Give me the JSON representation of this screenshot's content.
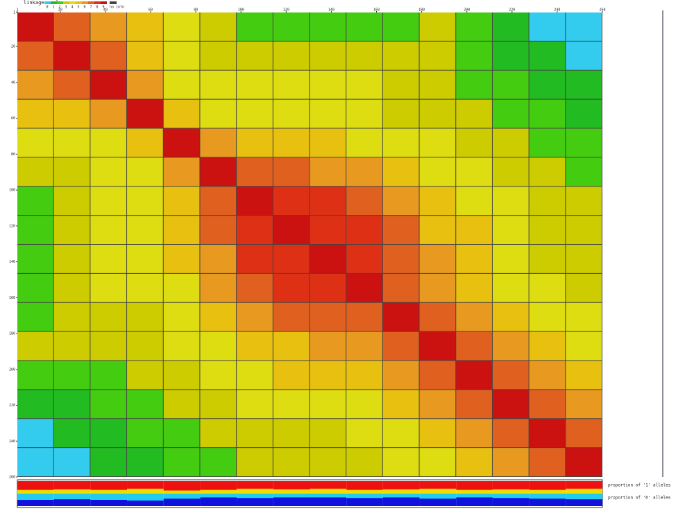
{
  "chart_data": {
    "type": "heatmap",
    "legend_title": "linkage scale",
    "no_info_label": "no info",
    "no_info_color": "#444444",
    "scale_labels": [
      0,
      1,
      2,
      3,
      4,
      5,
      6,
      7,
      8,
      9
    ],
    "colors": [
      "#33ccee",
      "#22bb22",
      "#44cc11",
      "#cccc00",
      "#dddd11",
      "#e8c010",
      "#e89a20",
      "#e06020",
      "#dd3015",
      "#cc1111"
    ],
    "xlim": [
      1,
      260
    ],
    "xticks": [
      1,
      20,
      40,
      60,
      80,
      100,
      120,
      140,
      160,
      180,
      200,
      220,
      240,
      260
    ],
    "yticks": [
      1,
      20,
      40,
      60,
      80,
      100,
      120,
      140,
      160,
      180,
      200,
      220,
      240,
      260
    ],
    "matrix": [
      [
        9,
        7,
        6,
        5,
        4,
        3,
        2,
        2,
        2,
        2,
        2,
        3,
        2,
        1,
        0,
        0
      ],
      [
        7,
        9,
        7,
        5,
        4,
        3,
        3,
        3,
        3,
        3,
        3,
        3,
        2,
        1,
        1,
        0
      ],
      [
        6,
        7,
        9,
        6,
        4,
        4,
        4,
        4,
        4,
        4,
        3,
        3,
        2,
        2,
        1,
        1
      ],
      [
        5,
        5,
        6,
        9,
        5,
        4,
        4,
        4,
        4,
        4,
        3,
        3,
        3,
        2,
        2,
        1
      ],
      [
        4,
        4,
        4,
        5,
        9,
        6,
        5,
        5,
        5,
        4,
        4,
        4,
        3,
        3,
        2,
        2
      ],
      [
        3,
        3,
        4,
        4,
        6,
        9,
        7,
        7,
        6,
        6,
        5,
        4,
        4,
        3,
        3,
        2
      ],
      [
        2,
        3,
        4,
        4,
        5,
        7,
        9,
        8,
        8,
        7,
        6,
        5,
        4,
        4,
        3,
        3
      ],
      [
        2,
        3,
        4,
        4,
        5,
        7,
        8,
        9,
        8,
        8,
        7,
        5,
        5,
        4,
        3,
        3
      ],
      [
        2,
        3,
        4,
        4,
        5,
        6,
        8,
        8,
        9,
        8,
        7,
        6,
        5,
        4,
        3,
        3
      ],
      [
        2,
        3,
        4,
        4,
        4,
        6,
        7,
        8,
        8,
        9,
        7,
        6,
        5,
        4,
        4,
        3
      ],
      [
        2,
        3,
        3,
        3,
        4,
        5,
        6,
        7,
        7,
        7,
        9,
        7,
        6,
        5,
        4,
        4
      ],
      [
        3,
        3,
        3,
        3,
        4,
        4,
        5,
        5,
        6,
        6,
        7,
        9,
        7,
        6,
        5,
        4
      ],
      [
        2,
        2,
        2,
        3,
        3,
        4,
        4,
        5,
        5,
        5,
        6,
        7,
        9,
        7,
        6,
        5
      ],
      [
        1,
        1,
        2,
        2,
        3,
        3,
        4,
        4,
        4,
        4,
        5,
        6,
        7,
        9,
        7,
        6
      ],
      [
        0,
        1,
        1,
        2,
        2,
        3,
        3,
        3,
        3,
        4,
        4,
        5,
        6,
        7,
        9,
        7
      ],
      [
        0,
        0,
        1,
        1,
        2,
        2,
        3,
        3,
        3,
        3,
        4,
        4,
        5,
        6,
        7,
        9
      ]
    ],
    "series": [
      {
        "name": "proportion of '1' alleles",
        "color": "#ee1111",
        "rest_color": "#eedd00",
        "values": [
          0.7,
          0.65,
          0.7,
          0.6,
          0.75,
          0.7,
          0.6,
          0.65,
          0.6,
          0.7,
          0.65,
          0.6,
          0.7,
          0.65,
          0.7,
          0.6
        ]
      },
      {
        "name": "proportion of '0' alleles",
        "color": "#1111dd",
        "rest_color": "#22ccee",
        "values": [
          0.5,
          0.55,
          0.5,
          0.45,
          0.6,
          0.7,
          0.65,
          0.7,
          0.7,
          0.65,
          0.7,
          0.6,
          0.7,
          0.65,
          0.6,
          0.55
        ]
      }
    ]
  }
}
